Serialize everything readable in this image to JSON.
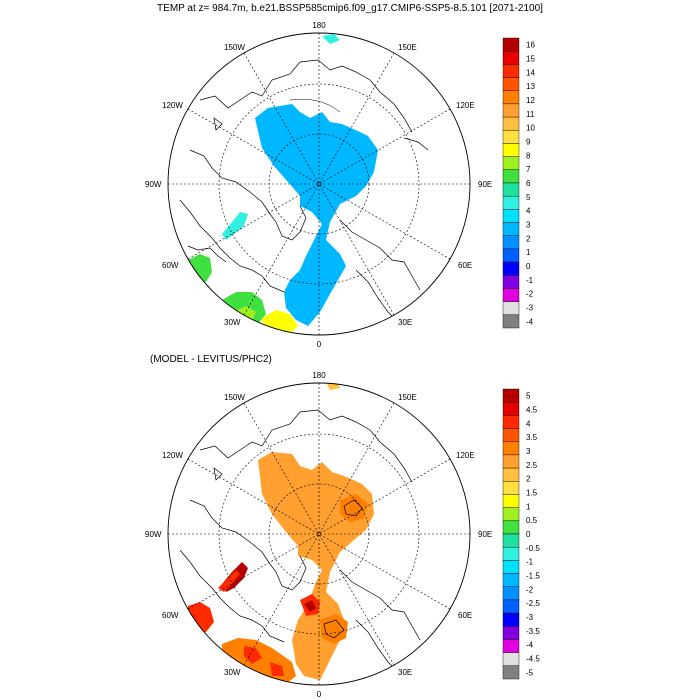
{
  "title": "TEMP at z= 984.7m, b.e21.BSSP585cmip6.f09_g17.CMIP6-SSP5-8.5.101 [2071-2100]",
  "subtitle": "(MODEL - LEVITUS/PHC2)",
  "longitude_labels": {
    "top": "180",
    "bottom": "0",
    "left": "90W",
    "right": "90E",
    "upper_left": "150W",
    "upper_right": "150E",
    "mid_upper_left": "120W",
    "mid_upper_right": "120E",
    "mid_lower_left": "60W",
    "mid_lower_right": "60E",
    "lower_left": "30W",
    "lower_right": "30E"
  },
  "colorbar_top": {
    "labels": [
      "16",
      "15",
      "14",
      "13",
      "12",
      "11",
      "10",
      "9",
      "8",
      "7",
      "6",
      "5",
      "4",
      "3",
      "2",
      "1",
      "0",
      "-1",
      "-2",
      "-3",
      "-4"
    ],
    "colors": [
      "#b40000",
      "#e60000",
      "#ff2a00",
      "#ff5500",
      "#ff8000",
      "#ffa030",
      "#ffc040",
      "#ffe040",
      "#ffff00",
      "#a0f020",
      "#40e040",
      "#20e0a0",
      "#30f0e0",
      "#00e0ff",
      "#00b8ff",
      "#0090ff",
      "#0060ff",
      "#0000ff",
      "#8000e0",
      "#e000e0",
      "#e0e0e0",
      "#808080"
    ]
  },
  "colorbar_bottom": {
    "labels": [
      "5",
      "4.5",
      "4",
      "3.5",
      "3",
      "2.5",
      "2",
      "1.5",
      "1",
      "0.5",
      "0",
      "-0.5",
      "-1",
      "-1.5",
      "-2",
      "-2.5",
      "-3",
      "-3.5",
      "-4",
      "-4.5",
      "-5"
    ],
    "colors": [
      "#b40000",
      "#e60000",
      "#ff2a00",
      "#ff5500",
      "#ff8000",
      "#ffa030",
      "#ffc040",
      "#ffe040",
      "#ffff00",
      "#a0f020",
      "#40e040",
      "#20e0a0",
      "#30f0e0",
      "#00e0ff",
      "#00b8ff",
      "#0090ff",
      "#0060ff",
      "#0000ff",
      "#8000e0",
      "#e000e0",
      "#e0e0e0",
      "#808080"
    ]
  },
  "fill_colors": {
    "top_main": "#00b8ff",
    "top_cyan": "#30f0e0",
    "top_green": "#40e040",
    "top_lime": "#a0f020",
    "top_yellow": "#ffff00",
    "bottom_main": "#ffa030",
    "bottom_orange": "#ff8000",
    "bottom_red": "#ff2a00",
    "bottom_darkred": "#b40000",
    "bottom_yellow": "#ffc040"
  }
}
